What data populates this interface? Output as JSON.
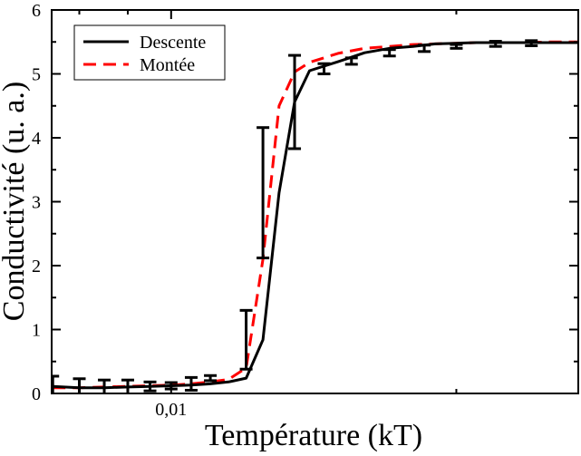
{
  "chart_data": {
    "type": "line",
    "title": "",
    "xlabel": "Température (kT)",
    "ylabel": "Conductivité (u. a.)",
    "xscale": "log",
    "xlim": [
      0.00748,
      0.0269
    ],
    "ylim": [
      0,
      6
    ],
    "x_ticks": [
      {
        "value": 0.01,
        "label": "0,01"
      }
    ],
    "y_ticks": [
      0,
      1,
      2,
      3,
      4,
      5,
      6
    ],
    "grid": false,
    "legend_position": "top-left",
    "series": [
      {
        "name": "Descente",
        "color": "#000000",
        "style": "solid",
        "x": [
          0.0075,
          0.008,
          0.0085,
          0.009,
          0.0095,
          0.01,
          0.0105,
          0.011,
          0.0115,
          0.012,
          0.0125,
          0.013,
          0.0135,
          0.014,
          0.015,
          0.016,
          0.017,
          0.018,
          0.019,
          0.02,
          0.021,
          0.022,
          0.0235,
          0.025,
          0.0269
        ],
        "y": [
          0.11,
          0.09,
          0.09,
          0.1,
          0.11,
          0.12,
          0.13,
          0.15,
          0.18,
          0.24,
          0.84,
          3.14,
          4.56,
          5.05,
          5.19,
          5.33,
          5.4,
          5.43,
          5.47,
          5.48,
          5.49,
          5.49,
          5.49,
          5.49,
          5.49
        ],
        "errors": [
          {
            "x": 0.0075,
            "y": 0.11,
            "err": 0.16
          },
          {
            "x": 0.008,
            "y": 0.09,
            "err": 0.14
          },
          {
            "x": 0.0085,
            "y": 0.09,
            "err": 0.12
          },
          {
            "x": 0.009,
            "y": 0.1,
            "err": 0.11
          },
          {
            "x": 0.0095,
            "y": 0.11,
            "err": 0.07
          },
          {
            "x": 0.01,
            "y": 0.12,
            "err": 0.05
          },
          {
            "x": 0.0105,
            "y": 0.15,
            "err": 0.1
          },
          {
            "x": 0.011,
            "y": 0.24,
            "err": 0.04
          },
          {
            "x": 0.012,
            "y": 0.84,
            "err": 0.46
          },
          {
            "x": 0.0125,
            "y": 3.14,
            "err": 1.02
          },
          {
            "x": 0.0135,
            "y": 4.56,
            "err": 0.73
          },
          {
            "x": 0.0145,
            "y": 5.08,
            "err": 0.08
          },
          {
            "x": 0.0155,
            "y": 5.2,
            "err": 0.05
          },
          {
            "x": 0.017,
            "y": 5.33,
            "err": 0.05
          },
          {
            "x": 0.0185,
            "y": 5.4,
            "err": 0.05
          },
          {
            "x": 0.02,
            "y": 5.43,
            "err": 0.03
          },
          {
            "x": 0.022,
            "y": 5.47,
            "err": 0.04
          },
          {
            "x": 0.024,
            "y": 5.48,
            "err": 0.04
          }
        ]
      },
      {
        "name": "Montée",
        "color": "#ff0000",
        "style": "dashed",
        "x": [
          0.0075,
          0.008,
          0.0085,
          0.009,
          0.0095,
          0.01,
          0.0105,
          0.011,
          0.0115,
          0.012,
          0.0125,
          0.013,
          0.0135,
          0.014,
          0.015,
          0.016,
          0.017,
          0.018,
          0.019,
          0.02,
          0.021,
          0.022,
          0.0235,
          0.025,
          0.0269
        ],
        "y": [
          0.09,
          0.09,
          0.1,
          0.11,
          0.12,
          0.13,
          0.15,
          0.18,
          0.22,
          0.4,
          2.1,
          4.5,
          5.03,
          5.18,
          5.32,
          5.4,
          5.43,
          5.46,
          5.47,
          5.48,
          5.49,
          5.49,
          5.49,
          5.5,
          5.5
        ]
      }
    ]
  }
}
